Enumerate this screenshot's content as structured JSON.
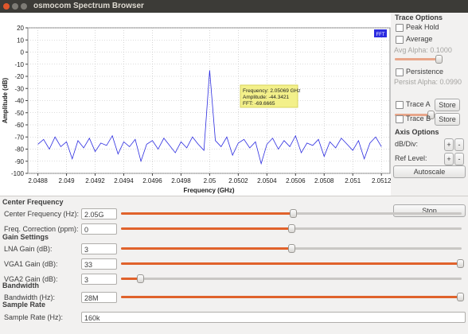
{
  "window": {
    "title": "osmocom Spectrum Browser"
  },
  "plot": {
    "type": "line",
    "xlabel": "Frequency (GHz)",
    "ylabel": "Amplitude (dB)",
    "xlim": [
      2.04873,
      2.05126
    ],
    "xticks": [
      2.0488,
      2.049,
      2.0492,
      2.0494,
      2.0496,
      2.0498,
      2.05,
      2.0502,
      2.0504,
      2.0506,
      2.0508,
      2.051,
      2.0512
    ],
    "ylim": [
      -100,
      20
    ],
    "yticks": [
      20,
      10,
      0,
      -10,
      -20,
      -30,
      -40,
      -50,
      -60,
      -70,
      -80,
      -90,
      -100
    ],
    "grid": true,
    "x": [
      2.0488,
      2.04884,
      2.04888,
      2.04892,
      2.04896,
      2.049,
      2.04904,
      2.04908,
      2.04912,
      2.04916,
      2.0492,
      2.04924,
      2.04928,
      2.04932,
      2.04936,
      2.0494,
      2.04944,
      2.04948,
      2.04952,
      2.04956,
      2.0496,
      2.04964,
      2.04968,
      2.04972,
      2.04976,
      2.0498,
      2.04984,
      2.04988,
      2.04992,
      2.04996,
      2.05,
      2.05004,
      2.05008,
      2.05012,
      2.05016,
      2.0502,
      2.05024,
      2.05028,
      2.05032,
      2.05036,
      2.0504,
      2.05044,
      2.05048,
      2.05052,
      2.05056,
      2.0506,
      2.05064,
      2.05068,
      2.05072,
      2.05076,
      2.0508,
      2.05084,
      2.05088,
      2.05092,
      2.05096,
      2.051,
      2.05104,
      2.05108,
      2.05112,
      2.05116,
      2.0512
    ],
    "series": [
      {
        "name": "FFT",
        "color": "#2b2be0",
        "values": [
          -76,
          -72,
          -80,
          -70,
          -78,
          -74,
          -88,
          -73,
          -79,
          -71,
          -82,
          -75,
          -77,
          -69,
          -84,
          -74,
          -78,
          -72,
          -90,
          -76,
          -73,
          -80,
          -71,
          -77,
          -83,
          -74,
          -79,
          -70,
          -76,
          -81,
          -15,
          -73,
          -78,
          -70,
          -85,
          -75,
          -72,
          -79,
          -74,
          -92,
          -76,
          -71,
          -80,
          -73,
          -78,
          -69,
          -83,
          -75,
          -77,
          -72,
          -86,
          -74,
          -79,
          -71,
          -76,
          -81,
          -73,
          -88,
          -75,
          -70,
          -78
        ]
      }
    ],
    "tooltip": [
      "Frequency: 2.05069 GHz",
      "Amplitude: -44.3421",
      "FFT: -69.6665"
    ]
  },
  "trace_options": {
    "title": "Trace Options",
    "peak_hold": "Peak Hold",
    "average": "Average",
    "avg_alpha": "Avg Alpha: 0.1000",
    "persistence": "Persistence",
    "persist_alpha": "Persist Alpha: 0.0990",
    "trace_a": "Trace A",
    "store_a": "Store",
    "trace_b": "Trace B",
    "store_b": "Store"
  },
  "axis_options": {
    "title": "Axis Options",
    "db_div": {
      "label": "dB/Div:",
      "plus": "+",
      "minus": "-"
    },
    "ref_level": {
      "label": "Ref Level:",
      "plus": "+",
      "minus": "-"
    },
    "autoscale": "Autoscale",
    "stop": "Stop"
  },
  "controls": {
    "sections": [
      {
        "title": "Center Frequency",
        "rows": [
          {
            "label": "Center Frequency (Hz):",
            "value": "2.05G"
          },
          {
            "label": "Freq. Correction (ppm):",
            "value": "0"
          }
        ]
      },
      {
        "title": "Gain Settings",
        "rows": [
          {
            "label": "LNA Gain (dB):",
            "value": "3"
          },
          {
            "label": "VGA1 Gain (dB):",
            "value": "33"
          },
          {
            "label": "VGA2 Gain (dB):",
            "value": "3"
          }
        ]
      },
      {
        "title": "Bandwidth",
        "rows": [
          {
            "label": "Bandwidth (Hz):",
            "value": "28M"
          }
        ]
      },
      {
        "title": "Sample Rate",
        "rows": [
          {
            "label": "Sample Rate (Hz):",
            "value": "160k"
          }
        ]
      }
    ]
  }
}
